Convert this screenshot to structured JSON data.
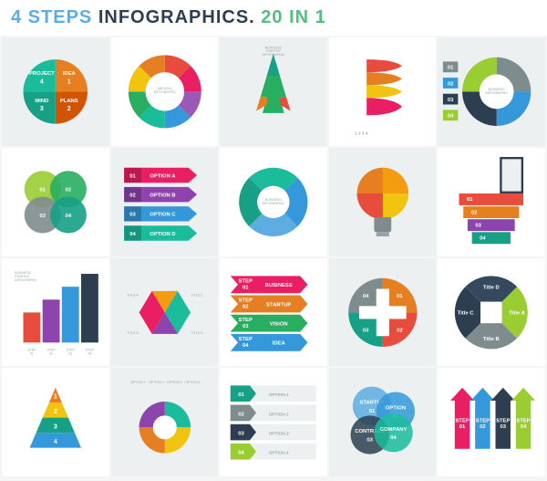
{
  "header": {
    "prefix": "4 STEPS",
    "mid": "INFOGRAPHICS.",
    "suffix": "20 IN 1",
    "prefix_color": "#5dade2",
    "mid_color": "#2c3e50",
    "suffix_color": "#52be80",
    "fontsize": 20
  },
  "palette": {
    "teal": "#16a085",
    "green": "#27ae60",
    "lime": "#9acd32",
    "blue": "#3498db",
    "navy": "#2c3e50",
    "orange": "#e67e22",
    "yellow": "#f1c40f",
    "red": "#e74c3c",
    "pink": "#e91e63",
    "purple": "#8e44ad",
    "gray": "#95a5a6",
    "darkgray": "#7f8c8d",
    "cyan": "#1abc9c"
  },
  "tiles": [
    {
      "id": 0,
      "type": "pie-quadrant",
      "bg": "gray",
      "labels": [
        "IDEA",
        "PLANS",
        "MIND",
        "PROJECT"
      ],
      "nums": [
        "1",
        "2",
        "3",
        "4"
      ],
      "colors": [
        "#e67e22",
        "#d35400",
        "#16a085",
        "#1abc9c"
      ]
    },
    {
      "id": 1,
      "type": "octagon-ring",
      "bg": "white",
      "center": "MEDICAL\nINFOGRAPHIC",
      "colors": [
        "#e74c3c",
        "#e91e63",
        "#9b59b6",
        "#3498db",
        "#1abc9c",
        "#27ae60",
        "#f1c40f",
        "#e67e22"
      ]
    },
    {
      "id": 2,
      "type": "rocket",
      "bg": "gray",
      "colors": [
        "#27ae60",
        "#16a085",
        "#e67e22",
        "#e74c3c"
      ],
      "caption": "BUSINESS\nSTARTUP\nINFOGRAPHIC"
    },
    {
      "id": 3,
      "type": "head-profile",
      "bg": "white",
      "nums": [
        "1",
        "2",
        "3",
        "4"
      ],
      "colors": [
        "#e74c3c",
        "#e67e22",
        "#f1c40f",
        "#e91e63"
      ]
    },
    {
      "id": 4,
      "type": "donut-arcs",
      "bg": "gray",
      "nums": [
        "01",
        "02",
        "03",
        "04"
      ],
      "center": "BUSINESS\nINFOGRAPHIC",
      "colors": [
        "#7f8c8d",
        "#3498db",
        "#2c3e50",
        "#9acd32"
      ]
    },
    {
      "id": 5,
      "type": "clover",
      "bg": "white",
      "nums": [
        "01",
        "02",
        "03",
        "04"
      ],
      "colors": [
        "#9acd32",
        "#27ae60",
        "#7f8c8d",
        "#16a085"
      ]
    },
    {
      "id": 6,
      "type": "arrow-rows",
      "bg": "gray",
      "nums": [
        "01",
        "02",
        "03",
        "04"
      ],
      "labels": [
        "OPTION A",
        "OPTION B",
        "OPTION C",
        "OPTION D"
      ],
      "colors": [
        "#e91e63",
        "#8e44ad",
        "#3498db",
        "#1abc9c"
      ]
    },
    {
      "id": 7,
      "type": "puzzle-ring",
      "bg": "white",
      "center": "BUSINESS\nINFOGRAPHIC",
      "colors": [
        "#3498db",
        "#5dade2",
        "#16a085",
        "#1abc9c"
      ]
    },
    {
      "id": 8,
      "type": "lightbulb",
      "bg": "gray",
      "colors": [
        "#e67e22",
        "#f39c12",
        "#f1c40f",
        "#e74c3c"
      ]
    },
    {
      "id": 9,
      "type": "stairs-door",
      "bg": "white",
      "nums": [
        "01",
        "02",
        "03",
        "04"
      ],
      "colors": [
        "#e74c3c",
        "#e67e22",
        "#8e44ad",
        "#16a085"
      ]
    },
    {
      "id": 10,
      "type": "step-bars",
      "bg": "white",
      "nums": [
        "STEP\n01",
        "STEP\n02",
        "STEP\n03",
        "STEP\n04"
      ],
      "caption": "BUSINESS\nSTARTUP\nINFOGRAPHIC",
      "colors": [
        "#e74c3c",
        "#8e44ad",
        "#3498db",
        "#2c3e50"
      ]
    },
    {
      "id": 11,
      "type": "diamond-duo",
      "bg": "gray",
      "labels": [
        "TITLE A",
        "TITLE B",
        "TITLE C",
        "TITLE D"
      ],
      "colors": [
        "#e91e63",
        "#f39c12",
        "#1abc9c",
        "#8e44ad"
      ]
    },
    {
      "id": 12,
      "type": "chevron-stack",
      "bg": "white",
      "nums": [
        "01",
        "02",
        "03",
        "04"
      ],
      "labels": [
        "BUSINESS",
        "STARTUP",
        "VISION",
        "IDEA"
      ],
      "prefix": "STEP",
      "colors": [
        "#e91e63",
        "#e67e22",
        "#27ae60",
        "#3498db"
      ]
    },
    {
      "id": 13,
      "type": "plus-circle",
      "bg": "gray",
      "nums": [
        "01",
        "02",
        "03",
        "04"
      ],
      "colors": [
        "#e67e22",
        "#e74c3c",
        "#16a085",
        "#7f8c8d"
      ]
    },
    {
      "id": 14,
      "type": "quad-ring",
      "bg": "white",
      "labels": [
        "Title A",
        "Title B",
        "Title C",
        "Title D"
      ],
      "colors": [
        "#9acd32",
        "#7f8c8d",
        "#2c3e50",
        "#34495e"
      ]
    },
    {
      "id": 15,
      "type": "pyramid",
      "bg": "white",
      "nums": [
        "1",
        "2",
        "3",
        "4"
      ],
      "colors": [
        "#e67e22",
        "#f1c40f",
        "#16a085",
        "#3498db"
      ]
    },
    {
      "id": 16,
      "type": "donut-options",
      "bg": "gray",
      "labels": [
        "OPTION 1",
        "OPTION 2",
        "OPTION 3",
        "OPTION 4"
      ],
      "colors": [
        "#1abc9c",
        "#f1c40f",
        "#e67e22",
        "#8e44ad"
      ]
    },
    {
      "id": 17,
      "type": "tag-rows",
      "bg": "white",
      "nums": [
        "01",
        "02",
        "03",
        "04"
      ],
      "labels": [
        "OPTION 1",
        "OPTION 2",
        "OPTION 3",
        "OPTION 4"
      ],
      "colors": [
        "#16a085",
        "#7f8c8d",
        "#2c3e50",
        "#9acd32"
      ]
    },
    {
      "id": 18,
      "type": "venn-circles",
      "bg": "gray",
      "labels": [
        "STARTUP",
        "OPTION",
        "CONTRACT",
        "COMPANY"
      ],
      "nums": [
        "01",
        "02",
        "03",
        "04"
      ],
      "colors": [
        "#5dade2",
        "#3498db",
        "#2c3e50",
        "#1abc9c"
      ]
    },
    {
      "id": 19,
      "type": "arrow-columns",
      "bg": "white",
      "labels": [
        "STEP\n01",
        "STEP\n02",
        "STEP\n03",
        "STEP\n04"
      ],
      "colors": [
        "#e91e63",
        "#3498db",
        "#2c3e50",
        "#9acd32"
      ]
    }
  ]
}
